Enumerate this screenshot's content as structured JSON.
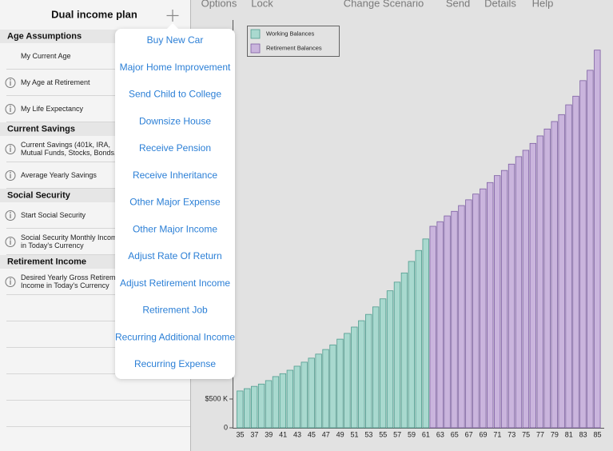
{
  "sidebar": {
    "title": "Dual income plan",
    "sections": [
      {
        "header": "Age Assumptions",
        "rows": [
          {
            "lines": [
              "My Current Age"
            ],
            "info": false
          },
          {
            "lines": [
              "My Age at Retirement"
            ],
            "info": true
          },
          {
            "lines": [
              "My Life Expectancy"
            ],
            "info": true
          }
        ]
      },
      {
        "header": "Current Savings",
        "rows": [
          {
            "lines": [
              "Current Savings (401k, IRA,",
              "Mutual Funds, Stocks, Bonds,"
            ],
            "info": true
          },
          {
            "lines": [
              "Average Yearly Savings"
            ],
            "info": true
          }
        ]
      },
      {
        "header": "Social Security",
        "rows": [
          {
            "lines": [
              "Start Social Security"
            ],
            "info": true
          },
          {
            "lines": [
              "Social Security Monthly Incom",
              "in Today's Currency"
            ],
            "info": true
          }
        ]
      },
      {
        "header": "Retirement Income",
        "rows": [
          {
            "lines": [
              "Desired Yearly Gross Retireme",
              "Income in Today's Currency"
            ],
            "info": true
          }
        ]
      }
    ]
  },
  "toolbar": [
    "Options",
    "Lock",
    "Change Scenario",
    "Send",
    "Details",
    "Help"
  ],
  "menu": [
    "Buy New Car",
    "Major Home Improvement",
    "Send Child to College",
    "Downsize House",
    "Receive Pension",
    "Receive Inheritance",
    "Other Major Expense",
    "Other Major Income",
    "Adjust Rate Of Return",
    "Adjust Retirement Income",
    "Retirement Job",
    "Recurring Additional Income",
    "Recurring Expense"
  ],
  "chart_data": {
    "type": "bar",
    "categories": [
      35,
      null,
      37,
      null,
      39,
      null,
      41,
      null,
      43,
      null,
      45,
      null,
      47,
      null,
      49,
      null,
      51,
      null,
      53,
      null,
      55,
      null,
      57,
      null,
      59,
      null,
      61,
      null,
      63,
      null,
      65,
      null,
      67,
      null,
      69,
      null,
      71,
      null,
      73,
      null,
      75,
      null,
      77,
      null,
      79,
      null,
      81,
      null,
      83,
      null,
      85
    ],
    "series": [
      {
        "name": "Working Balances",
        "color": "#a9d9cf",
        "values": [
          640000,
          680000,
          720000,
          760000,
          820000,
          890000,
          940000,
          1000000,
          1070000,
          1140000,
          1210000,
          1280000,
          1360000,
          1440000,
          1540000,
          1640000,
          1750000,
          1860000,
          1970000,
          2100000,
          2240000,
          2380000,
          2530000,
          2690000,
          2890000,
          3080000,
          3280000,
          null,
          null,
          null,
          null,
          null,
          null,
          null,
          null,
          null,
          null,
          null,
          null,
          null,
          null,
          null,
          null,
          null,
          null,
          null,
          null,
          null,
          null,
          null,
          null
        ]
      },
      {
        "name": "Retirement Balances",
        "color": "#cab5dd",
        "values": [
          null,
          null,
          null,
          null,
          null,
          null,
          null,
          null,
          null,
          null,
          null,
          null,
          null,
          null,
          null,
          null,
          null,
          null,
          null,
          null,
          null,
          null,
          null,
          null,
          null,
          null,
          null,
          3500000,
          3580000,
          3680000,
          3760000,
          3860000,
          3960000,
          4060000,
          4150000,
          4260000,
          4380000,
          4470000,
          4580000,
          4710000,
          4820000,
          4940000,
          5070000,
          5190000,
          5320000,
          5440000,
          5610000,
          5760000,
          6030000,
          6210000,
          6560000
        ]
      }
    ],
    "ylim": [
      0,
      7000000
    ],
    "yticks": [
      0,
      {
        "value": 500000,
        "label": "$500 K"
      }
    ],
    "legend": "top-left"
  }
}
